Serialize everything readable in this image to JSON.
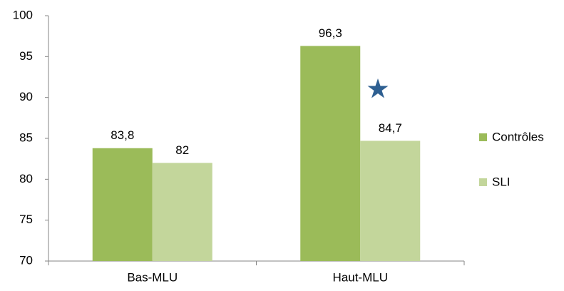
{
  "chart_data": {
    "type": "bar",
    "categories": [
      "Bas-MLU",
      "Haut-MLU"
    ],
    "series": [
      {
        "name": "Contrôles",
        "color": "#9bbb59",
        "values": [
          83.8,
          96.3
        ],
        "value_labels": [
          "83,8",
          "96,3"
        ]
      },
      {
        "name": "SLI",
        "color": "#c3d69b",
        "values": [
          82,
          84.7
        ],
        "value_labels": [
          "82",
          "84,7"
        ]
      }
    ],
    "ylim": [
      70,
      100
    ],
    "yticks": [
      70,
      75,
      80,
      85,
      90,
      95,
      100
    ],
    "grid": false,
    "legend": "right"
  }
}
